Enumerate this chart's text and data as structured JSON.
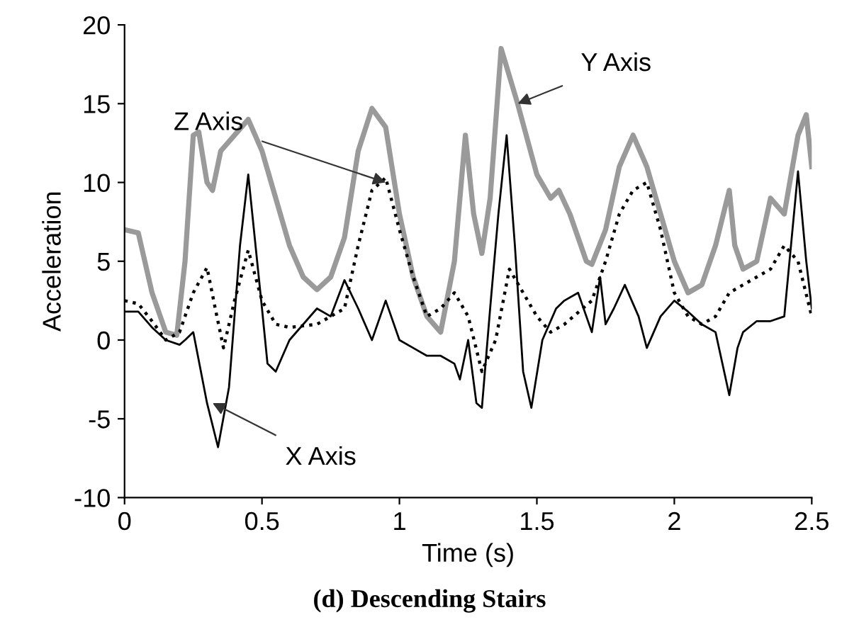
{
  "chart_data": {
    "type": "line",
    "title": "(d) Descending Stairs",
    "xlabel": "Time (s)",
    "ylabel": "Acceleration",
    "xlim": [
      0,
      2.5
    ],
    "xticks": [
      0,
      0.5,
      1,
      1.5,
      2,
      2.5
    ],
    "ylim": [
      -10,
      20
    ],
    "yticks": [
      -10,
      -5,
      0,
      5,
      10,
      15,
      20
    ],
    "grid": false,
    "legend": false,
    "series": [
      {
        "color": "#9a9a9a",
        "line_style": "solid",
        "x": [
          0,
          0.05,
          0.1,
          0.15,
          0.19,
          0.22,
          0.25,
          0.27,
          0.3,
          0.32,
          0.35,
          0.4,
          0.45,
          0.5,
          0.55,
          0.6,
          0.65,
          0.7,
          0.75,
          0.8,
          0.85,
          0.9,
          0.95,
          1.0,
          1.05,
          1.1,
          1.15,
          1.2,
          1.24,
          1.27,
          1.3,
          1.33,
          1.37,
          1.43,
          1.5,
          1.55,
          1.58,
          1.62,
          1.68,
          1.7,
          1.75,
          1.8,
          1.85,
          1.9,
          1.95,
          2.0,
          2.05,
          2.1,
          2.15,
          2.2,
          2.22,
          2.25,
          2.3,
          2.35,
          2.4,
          2.45,
          2.48,
          2.5
        ],
        "values": [
          7,
          6.8,
          3,
          0.5,
          0.3,
          5,
          13,
          13.2,
          10,
          9.5,
          12,
          13,
          14,
          12,
          9,
          6,
          4,
          3.2,
          4,
          6.5,
          12,
          14.7,
          13.5,
          8,
          4,
          1.5,
          0.5,
          5,
          13,
          8,
          5.5,
          9,
          18.5,
          15,
          10.5,
          9,
          9.5,
          8,
          5,
          4.8,
          7,
          11,
          13,
          11,
          8,
          5,
          3,
          3.5,
          6,
          9.5,
          6,
          4.5,
          5,
          9,
          8,
          13,
          14.3,
          11
        ]
      },
      {
        "color": "#000000",
        "line_style": "dotted",
        "x": [
          0,
          0.05,
          0.1,
          0.15,
          0.2,
          0.25,
          0.3,
          0.33,
          0.36,
          0.4,
          0.45,
          0.5,
          0.55,
          0.6,
          0.7,
          0.8,
          0.85,
          0.9,
          0.95,
          1.0,
          1.05,
          1.1,
          1.15,
          1.2,
          1.25,
          1.3,
          1.35,
          1.4,
          1.45,
          1.5,
          1.55,
          1.6,
          1.7,
          1.75,
          1.8,
          1.85,
          1.9,
          1.95,
          2.0,
          2.05,
          2.1,
          2.15,
          2.2,
          2.3,
          2.35,
          2.4,
          2.45,
          2.5
        ],
        "values": [
          2.5,
          2.3,
          1.2,
          0,
          0.5,
          3,
          4.6,
          2,
          -0.5,
          2.5,
          5.7,
          2.5,
          1,
          0.8,
          1,
          2,
          6,
          9.5,
          10.3,
          7,
          4,
          1.5,
          2,
          3,
          1.5,
          -2,
          0,
          4.5,
          3,
          1.5,
          0.5,
          1,
          2.5,
          5,
          8,
          9.5,
          10,
          7,
          3,
          1.5,
          1,
          1.5,
          3,
          4,
          4.5,
          6,
          5,
          1.5
        ]
      },
      {
        "color": "#000000",
        "line_style": "solid",
        "x": [
          0,
          0.05,
          0.1,
          0.15,
          0.2,
          0.22,
          0.25,
          0.3,
          0.34,
          0.38,
          0.42,
          0.45,
          0.5,
          0.52,
          0.55,
          0.6,
          0.65,
          0.7,
          0.75,
          0.8,
          0.85,
          0.9,
          0.95,
          1.0,
          1.05,
          1.1,
          1.15,
          1.2,
          1.22,
          1.25,
          1.28,
          1.3,
          1.33,
          1.36,
          1.39,
          1.42,
          1.45,
          1.48,
          1.52,
          1.57,
          1.6,
          1.65,
          1.7,
          1.73,
          1.75,
          1.78,
          1.82,
          1.87,
          1.9,
          1.95,
          2.0,
          2.05,
          2.1,
          2.15,
          2.2,
          2.23,
          2.25,
          2.3,
          2.35,
          2.4,
          2.45,
          2.48,
          2.5
        ],
        "values": [
          1.8,
          1.8,
          0.8,
          0,
          -0.3,
          0,
          0.5,
          -4,
          -6.8,
          -3,
          6,
          10.5,
          2,
          -1.5,
          -2,
          0,
          1,
          2,
          1.5,
          3.8,
          2,
          0,
          2.5,
          0,
          -0.5,
          -1,
          -1,
          -1.5,
          -2.5,
          0,
          -4,
          -4.3,
          2,
          8,
          13,
          6,
          -2,
          -4.3,
          0,
          2,
          2.5,
          3,
          0.5,
          4,
          1,
          2,
          3.5,
          1.5,
          -0.5,
          1.5,
          2.5,
          1.8,
          1,
          0.5,
          -3.5,
          -0.5,
          0.5,
          1.2,
          1.2,
          1.5,
          10.7,
          5,
          2
        ]
      }
    ],
    "annotations": [
      {
        "text": "Z Axis",
        "x": 0.95,
        "y": 10
      },
      {
        "text": "Y Axis",
        "x": 1.43,
        "y": 15
      },
      {
        "text": "X Axis",
        "x": 0.32,
        "y": -4
      }
    ]
  }
}
